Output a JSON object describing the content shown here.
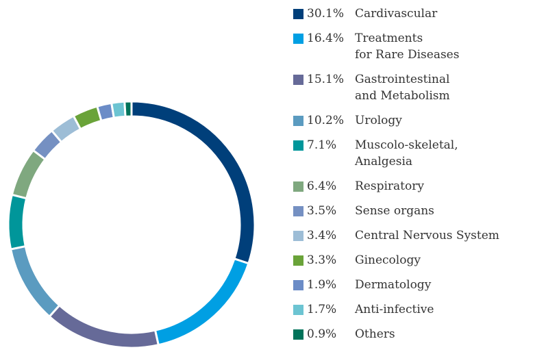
{
  "chart_data": {
    "type": "pie",
    "categories": [
      "Cardivascular",
      "Treatments\nfor Rare Diseases",
      "Gastrointestinal\nand Metabolism",
      "Urology",
      "Muscolo-skeletal,\nAnalgesia",
      "Respiratory",
      "Sense organs",
      "Central Nervous System",
      "Ginecology",
      "Dermatology",
      "Anti-infective",
      "Others"
    ],
    "values": [
      30.1,
      16.4,
      15.1,
      10.2,
      7.1,
      6.4,
      3.5,
      3.4,
      3.3,
      1.9,
      1.7,
      0.9
    ],
    "value_labels": [
      "30.1%",
      "16.4%",
      "15.1%",
      "10.2%",
      "7.1%",
      "6.4%",
      "3.5%",
      "3.4%",
      "3.3%",
      "1.9%",
      "1.7%",
      "0.9%"
    ],
    "colors": [
      "#003f7a",
      "#009fe3",
      "#666a98",
      "#5b9bc0",
      "#00969a",
      "#7fa87f",
      "#7590c2",
      "#9dbdd6",
      "#6aa339",
      "#6b8cc7",
      "#6cc4d2",
      "#00735a"
    ],
    "donut": true
  }
}
